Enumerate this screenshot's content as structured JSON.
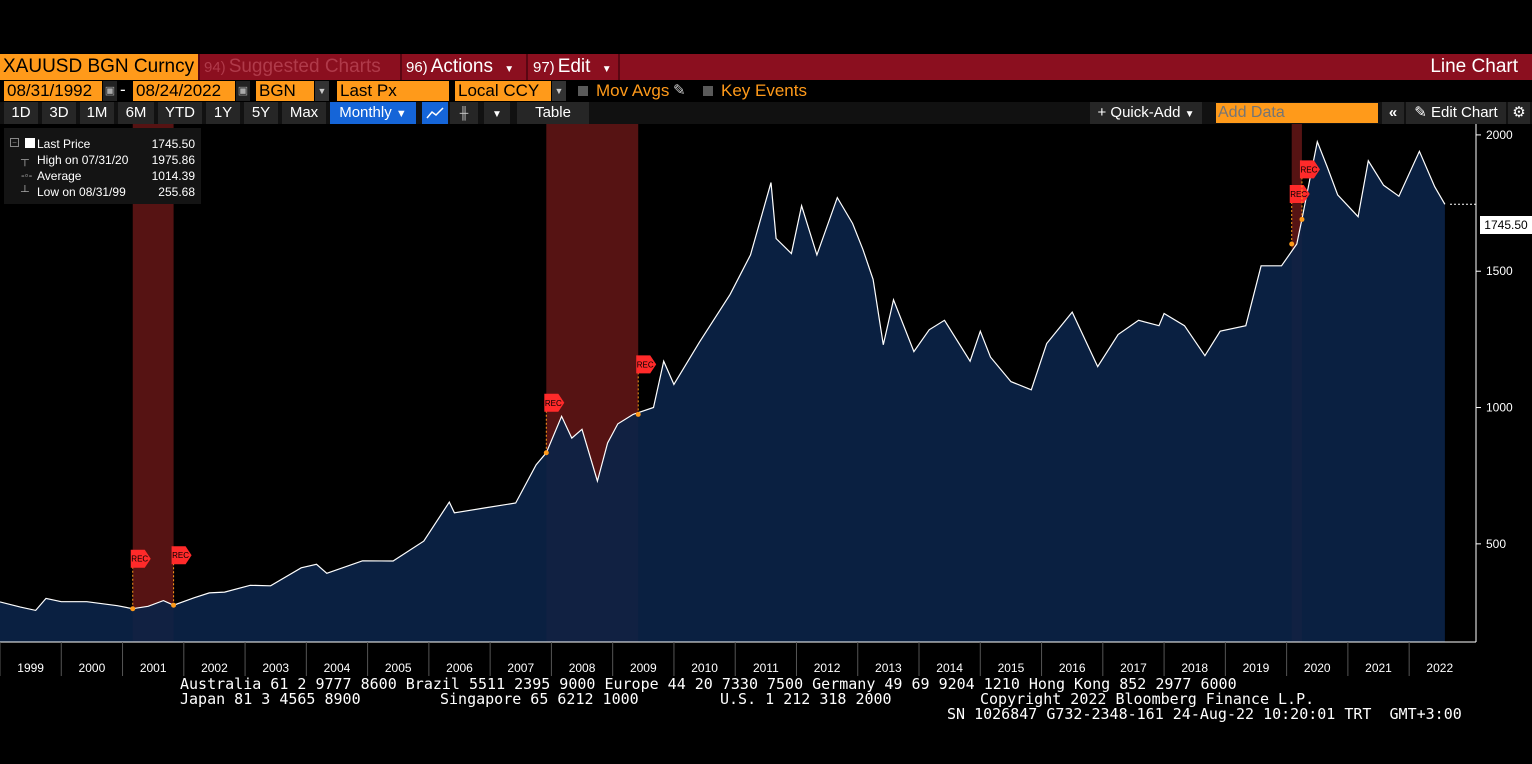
{
  "titlebar": {
    "ticker": "XAUUSD BGN Curncy",
    "suggested_num": "94)",
    "suggested_label": "Suggested Charts",
    "actions_num": "96)",
    "actions_label": "Actions",
    "edit_num": "97)",
    "edit_label": "Edit",
    "chart_type": "Line Chart"
  },
  "toolbar": {
    "start_date": "08/31/1992",
    "date_sep": "-",
    "end_date": "08/24/2022",
    "source": "BGN",
    "field": "Last Px",
    "currency": "Local CCY",
    "mov_avgs": "Mov Avgs",
    "key_events": "Key Events"
  },
  "periods": [
    "1D",
    "3D",
    "1M",
    "6M",
    "YTD",
    "1Y",
    "5Y",
    "Max"
  ],
  "frequency": "Monthly",
  "table_label": "Table",
  "quick_add": "Quick-Add",
  "add_data_placeholder": "Add Data",
  "edit_chart": "Edit Chart",
  "legend": {
    "last_label": "Last Price",
    "last_value": "1745.50",
    "high_label": "High on 07/31/20",
    "high_value": "1975.86",
    "avg_label": "Average",
    "avg_value": "1014.39",
    "low_label": "Low on 08/31/99",
    "low_value": "255.68"
  },
  "last_price_tag": "1745.50",
  "colors": {
    "bar_red": "#8b0f1f",
    "field_orange": "#ff9a1a",
    "area_fill": "#0b2346",
    "line": "#ffffff",
    "recession": "#6b1818",
    "rec_marker": "#ff2a2a"
  },
  "event_label": "REC",
  "footer": {
    "line1": "Australia 61 2 9777 8600 Brazil 5511 2395 9000 Europe 44 20 7330 7500 Germany 49 69 9204 1210 Hong Kong 852 2977 6000",
    "line2a": "Japan 81 3 4565 8900",
    "line2b": "Singapore 65 6212 1000",
    "line2c": "U.S. 1 212 318 2000",
    "line2d": "Copyright 2022 Bloomberg Finance L.P.",
    "line3": "SN 1026847 G732-2348-161 24-Aug-22 10:20:01 TRT  GMT+3:00"
  },
  "chart_data": {
    "type": "area",
    "ylim": [
      140,
      2040
    ],
    "y_ticks": [
      500,
      1000,
      1500,
      2000
    ],
    "x_labels": [
      "1999",
      "2000",
      "2001",
      "2002",
      "2003",
      "2004",
      "2005",
      "2006",
      "2007",
      "2008",
      "2009",
      "2010",
      "2011",
      "2012",
      "2013",
      "2014",
      "2015",
      "2016",
      "2017",
      "2018",
      "2019",
      "2020",
      "2021",
      "2022"
    ],
    "recessions": [
      [
        "2001-03",
        "2001-11"
      ],
      [
        "2007-12",
        "2009-06"
      ],
      [
        "2020-02",
        "2020-04"
      ]
    ],
    "x_range": [
      "1999-01",
      "2022-09"
    ],
    "series": [
      {
        "values": [
          [
            "1999-01",
            287
          ],
          [
            "1999-05",
            268
          ],
          [
            "1999-08",
            256
          ],
          [
            "1999-10",
            300
          ],
          [
            "2000-01",
            288
          ],
          [
            "2000-06",
            288
          ],
          [
            "2000-12",
            273
          ],
          [
            "2001-03",
            262
          ],
          [
            "2001-06",
            271
          ],
          [
            "2001-09",
            292
          ],
          [
            "2001-11",
            275
          ],
          [
            "2002-03",
            302
          ],
          [
            "2002-06",
            320
          ],
          [
            "2002-09",
            323
          ],
          [
            "2003-02",
            348
          ],
          [
            "2003-06",
            346
          ],
          [
            "2003-12",
            412
          ],
          [
            "2004-03",
            425
          ],
          [
            "2004-05",
            392
          ],
          [
            "2004-12",
            438
          ],
          [
            "2005-06",
            437
          ],
          [
            "2005-12",
            510
          ],
          [
            "2006-05",
            653
          ],
          [
            "2006-06",
            614
          ],
          [
            "2006-12",
            632
          ],
          [
            "2007-06",
            650
          ],
          [
            "2007-10",
            790
          ],
          [
            "2007-12",
            834
          ],
          [
            "2008-03",
            968
          ],
          [
            "2008-05",
            888
          ],
          [
            "2008-07",
            920
          ],
          [
            "2008-10",
            730
          ],
          [
            "2008-12",
            870
          ],
          [
            "2009-02",
            940
          ],
          [
            "2009-05",
            975
          ],
          [
            "2009-09",
            1000
          ],
          [
            "2009-11",
            1170
          ],
          [
            "2010-01",
            1085
          ],
          [
            "2010-06",
            1240
          ],
          [
            "2010-12",
            1415
          ],
          [
            "2011-04",
            1560
          ],
          [
            "2011-08",
            1825
          ],
          [
            "2011-09",
            1620
          ],
          [
            "2011-12",
            1565
          ],
          [
            "2012-02",
            1740
          ],
          [
            "2012-05",
            1560
          ],
          [
            "2012-09",
            1770
          ],
          [
            "2012-12",
            1675
          ],
          [
            "2013-02",
            1580
          ],
          [
            "2013-04",
            1470
          ],
          [
            "2013-06",
            1230
          ],
          [
            "2013-08",
            1395
          ],
          [
            "2013-12",
            1205
          ],
          [
            "2014-03",
            1285
          ],
          [
            "2014-06",
            1320
          ],
          [
            "2014-11",
            1170
          ],
          [
            "2015-01",
            1280
          ],
          [
            "2015-03",
            1185
          ],
          [
            "2015-07",
            1095
          ],
          [
            "2015-11",
            1065
          ],
          [
            "2016-02",
            1235
          ],
          [
            "2016-07",
            1350
          ],
          [
            "2016-12",
            1150
          ],
          [
            "2017-04",
            1268
          ],
          [
            "2017-08",
            1320
          ],
          [
            "2017-12",
            1300
          ],
          [
            "2018-01",
            1345
          ],
          [
            "2018-05",
            1300
          ],
          [
            "2018-09",
            1190
          ],
          [
            "2018-12",
            1280
          ],
          [
            "2019-05",
            1300
          ],
          [
            "2019-08",
            1520
          ],
          [
            "2019-12",
            1520
          ],
          [
            "2020-03",
            1600
          ],
          [
            "2020-04",
            1690
          ],
          [
            "2020-07",
            1975
          ],
          [
            "2020-09",
            1880
          ],
          [
            "2020-11",
            1780
          ],
          [
            "2021-03",
            1700
          ],
          [
            "2021-05",
            1905
          ],
          [
            "2021-08",
            1815
          ],
          [
            "2021-11",
            1775
          ],
          [
            "2022-03",
            1940
          ],
          [
            "2022-06",
            1810
          ],
          [
            "2022-08",
            1745.5
          ]
        ]
      }
    ],
    "event_markers": [
      "2001-03",
      "2001-11",
      "2007-12",
      "2009-06",
      "2020-02",
      "2020-04"
    ]
  }
}
